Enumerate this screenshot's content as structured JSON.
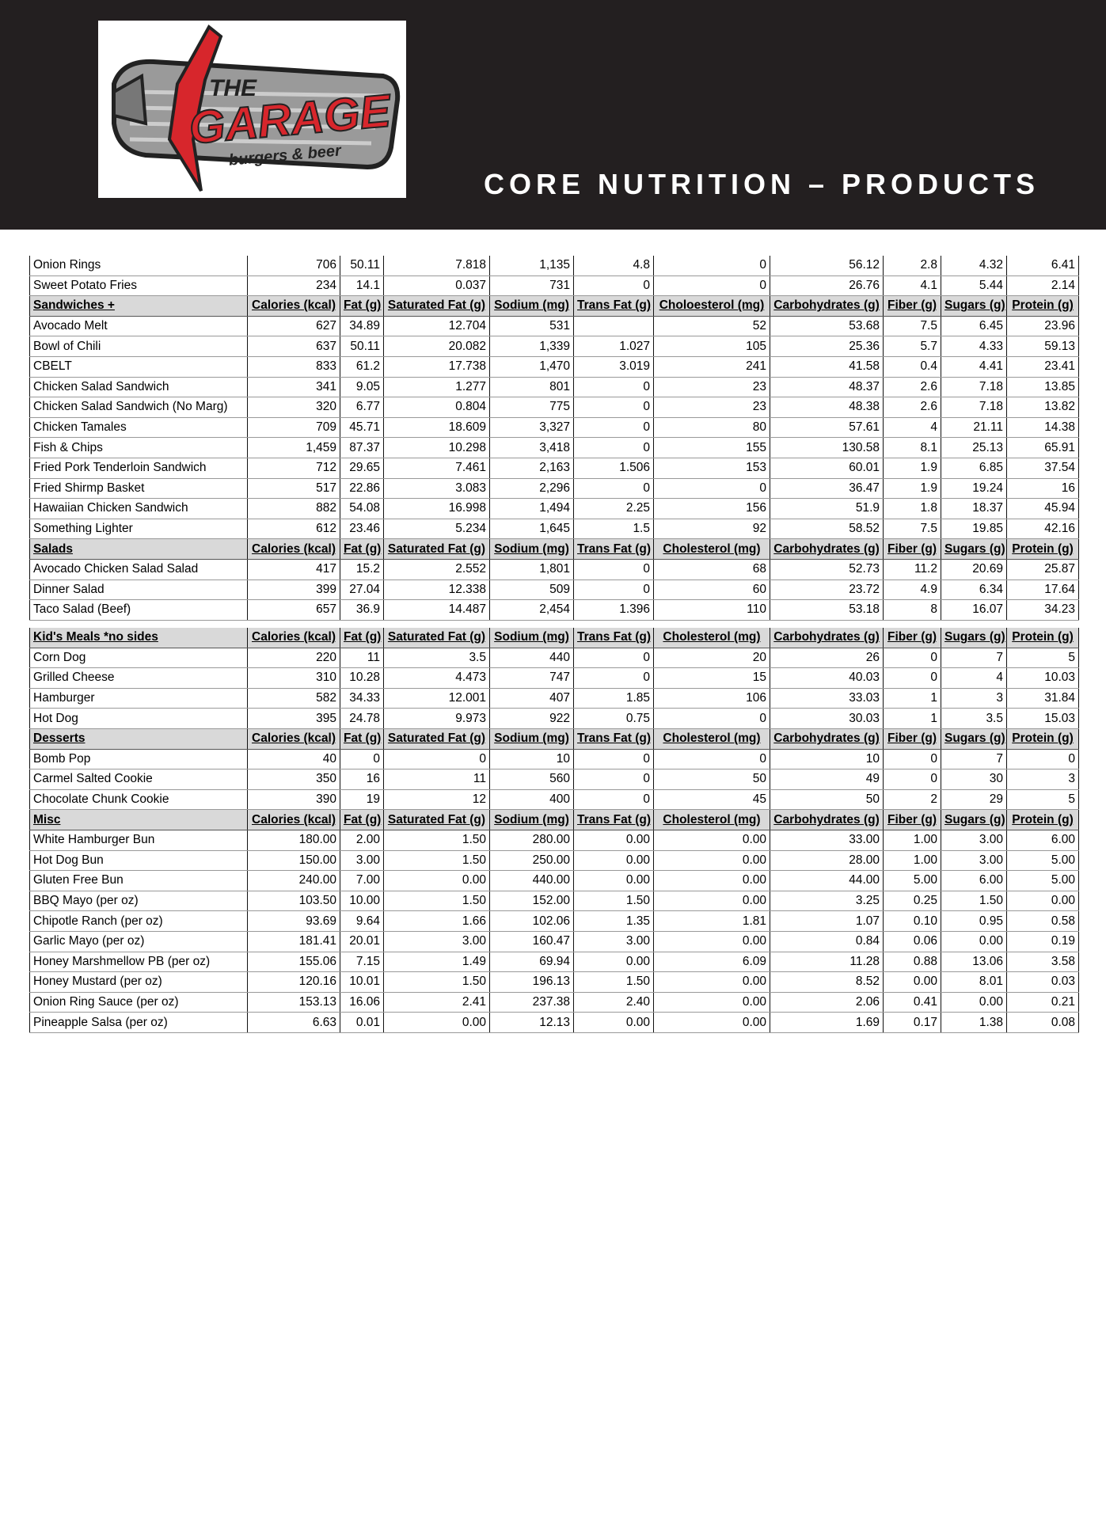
{
  "header": {
    "logo": {
      "line1": "THE",
      "line2": "GARAGE",
      "tagline": "burgers & beer"
    },
    "title": "CORE NUTRITION – PRODUCTS"
  },
  "tables": [
    {
      "rows": [
        {
          "cells": [
            "Onion Rings",
            "706",
            "50.11",
            "7.818",
            "1,135",
            "4.8",
            "0",
            "56.12",
            "2.8",
            "4.32",
            "6.41"
          ]
        },
        {
          "cells": [
            "Sweet Potato Fries",
            "234",
            "14.1",
            "0.037",
            "731",
            "0",
            "0",
            "26.76",
            "4.1",
            "5.44",
            "2.14"
          ]
        },
        {
          "heading": [
            "Sandwiches +",
            "Calories (kcal)",
            "Fat (g)",
            "Saturated Fat (g)",
            "Sodium (mg)",
            "Trans Fat (g)",
            "Choloesterol (mg)",
            "Carbohydrates (g)",
            "Fiber (g)",
            "Sugars (g)",
            "Protein (g)"
          ]
        },
        {
          "cells": [
            "Avocado Melt",
            "627",
            "34.89",
            "12.704",
            "531",
            null,
            "52",
            "53.68",
            "7.5",
            "6.45",
            "23.96"
          ]
        },
        {
          "cells": [
            "Bowl of Chili",
            "637",
            "50.11",
            "20.082",
            "1,339",
            "1.027",
            "105",
            "25.36",
            "5.7",
            "4.33",
            "59.13"
          ]
        },
        {
          "cells": [
            "CBELT",
            "833",
            "61.2",
            "17.738",
            "1,470",
            "3.019",
            "241",
            "41.58",
            "0.4",
            "4.41",
            "23.41"
          ]
        },
        {
          "cells": [
            "Chicken Salad Sandwich",
            "341",
            "9.05",
            "1.277",
            "801",
            "0",
            "23",
            "48.37",
            "2.6",
            "7.18",
            "13.85"
          ]
        },
        {
          "cells": [
            "Chicken Salad Sandwich (No Marg)",
            "320",
            "6.77",
            "0.804",
            "775",
            "0",
            "23",
            "48.38",
            "2.6",
            "7.18",
            "13.82"
          ]
        },
        {
          "cells": [
            "Chicken Tamales",
            "709",
            "45.71",
            "18.609",
            "3,327",
            "0",
            "80",
            "57.61",
            "4",
            "21.11",
            "14.38"
          ]
        },
        {
          "cells": [
            "Fish & Chips",
            "1,459",
            "87.37",
            "10.298",
            "3,418",
            "0",
            "155",
            "130.58",
            "8.1",
            "25.13",
            "65.91"
          ]
        },
        {
          "cells": [
            "Fried Pork Tenderloin Sandwich",
            "712",
            "29.65",
            "7.461",
            "2,163",
            "1.506",
            "153",
            "60.01",
            "1.9",
            "6.85",
            "37.54"
          ]
        },
        {
          "cells": [
            "Fried Shirmp Basket",
            "517",
            "22.86",
            "3.083",
            "2,296",
            "0",
            "0",
            "36.47",
            "1.9",
            "19.24",
            "16"
          ]
        },
        {
          "cells": [
            "Hawaiian Chicken Sandwich",
            "882",
            "54.08",
            "16.998",
            "1,494",
            "2.25",
            "156",
            "51.9",
            "1.8",
            "18.37",
            "45.94"
          ]
        },
        {
          "cells": [
            "Something Lighter",
            "612",
            "23.46",
            "5.234",
            "1,645",
            "1.5",
            "92",
            "58.52",
            "7.5",
            "19.85",
            "42.16"
          ]
        },
        {
          "heading": [
            "Salads",
            "Calories (kcal)",
            "Fat (g)",
            "Saturated Fat (g)",
            "Sodium (mg)",
            "Trans Fat (g)",
            "Cholesterol (mg)",
            "Carbohydrates (g)",
            "Fiber (g)",
            "Sugars (g)",
            "Protein (g)"
          ]
        },
        {
          "cells": [
            "Avocado Chicken Salad Salad",
            "417",
            "15.2",
            "2.552",
            "1,801",
            "0",
            "68",
            "52.73",
            "11.2",
            "20.69",
            "25.87"
          ]
        },
        {
          "cells": [
            "Dinner Salad",
            "399",
            "27.04",
            "12.338",
            "509",
            "0",
            "60",
            "23.72",
            "4.9",
            "6.34",
            "17.64"
          ]
        },
        {
          "cells": [
            "Taco Salad (Beef)",
            "657",
            "36.9",
            "14.487",
            "2,454",
            "1.396",
            "110",
            "53.18",
            "8",
            "16.07",
            "34.23"
          ]
        }
      ]
    },
    {
      "rows": [
        {
          "heading": [
            "Kid's Meals *no sides",
            "Calories (kcal)",
            "Fat (g)",
            "Saturated Fat (g)",
            "Sodium (mg)",
            "Trans Fat (g)",
            "Cholesterol (mg)",
            "Carbohydrates (g)",
            "Fiber (g)",
            "Sugars (g)",
            "Protein (g)"
          ]
        },
        {
          "cells": [
            "Corn Dog",
            "220",
            "11",
            "3.5",
            "440",
            "0",
            "20",
            "26",
            "0",
            "7",
            "5"
          ]
        },
        {
          "cells": [
            "Grilled Cheese",
            "310",
            "10.28",
            "4.473",
            "747",
            "0",
            "15",
            "40.03",
            "0",
            "4",
            "10.03"
          ]
        },
        {
          "cells": [
            "Hamburger",
            "582",
            "34.33",
            "12.001",
            "407",
            "1.85",
            "106",
            "33.03",
            "1",
            "3",
            "31.84"
          ]
        },
        {
          "cells": [
            "Hot Dog",
            "395",
            "24.78",
            "9.973",
            "922",
            "0.75",
            "0",
            "30.03",
            "1",
            "3.5",
            "15.03"
          ]
        },
        {
          "heading": [
            "Desserts",
            "Calories (kcal)",
            "Fat (g)",
            "Saturated Fat (g)",
            "Sodium (mg)",
            "Trans Fat (g)",
            "Cholesterol (mg)",
            "Carbohydrates (g)",
            "Fiber (g)",
            "Sugars (g)",
            "Protein (g)"
          ]
        },
        {
          "cells": [
            "Bomb Pop",
            "40",
            "0",
            "0",
            "10",
            "0",
            "0",
            "10",
            "0",
            "7",
            "0"
          ]
        },
        {
          "cells": [
            "Carmel Salted Cookie",
            "350",
            "16",
            "11",
            "560",
            "0",
            "50",
            "49",
            "0",
            "30",
            "3"
          ]
        },
        {
          "cells": [
            "Chocolate Chunk Cookie",
            "390",
            "19",
            "12",
            "400",
            "0",
            "45",
            "50",
            "2",
            "29",
            "5"
          ]
        },
        {
          "heading": [
            "Misc",
            "Calories (kcal)",
            "Fat (g)",
            "Saturated Fat (g)",
            "Sodium (mg)",
            "Trans Fat (g)",
            "Cholesterol (mg)",
            "Carbohydrates (g)",
            "Fiber (g)",
            "Sugars (g)",
            "Protein (g)"
          ]
        },
        {
          "cells": [
            "White Hamburger Bun",
            "180.00",
            "2.00",
            "1.50",
            "280.00",
            "0.00",
            "0.00",
            "33.00",
            "1.00",
            "3.00",
            "6.00"
          ]
        },
        {
          "cells": [
            "Hot Dog Bun",
            "150.00",
            "3.00",
            "1.50",
            "250.00",
            "0.00",
            "0.00",
            "28.00",
            "1.00",
            "3.00",
            "5.00"
          ]
        },
        {
          "cells": [
            "Gluten Free Bun",
            "240.00",
            "7.00",
            "0.00",
            "440.00",
            "0.00",
            "0.00",
            "44.00",
            "5.00",
            "6.00",
            "5.00"
          ]
        },
        {
          "cells": [
            "BBQ Mayo (per oz)",
            "103.50",
            "10.00",
            "1.50",
            "152.00",
            "1.50",
            "0.00",
            "3.25",
            "0.25",
            "1.50",
            "0.00"
          ]
        },
        {
          "cells": [
            "Chipotle Ranch (per oz)",
            "93.69",
            "9.64",
            "1.66",
            "102.06",
            "1.35",
            "1.81",
            "1.07",
            "0.10",
            "0.95",
            "0.58"
          ]
        },
        {
          "cells": [
            "Garlic Mayo (per oz)",
            "181.41",
            "20.01",
            "3.00",
            "160.47",
            "3.00",
            "0.00",
            "0.84",
            "0.06",
            "0.00",
            "0.19"
          ]
        },
        {
          "cells": [
            "Honey Marshmellow PB (per oz)",
            "155.06",
            "7.15",
            "1.49",
            "69.94",
            "0.00",
            "6.09",
            "11.28",
            "0.88",
            "13.06",
            "3.58"
          ]
        },
        {
          "cells": [
            "Honey Mustard (per oz)",
            "120.16",
            "10.01",
            "1.50",
            "196.13",
            "1.50",
            "0.00",
            "8.52",
            "0.00",
            "8.01",
            "0.03"
          ]
        },
        {
          "cells": [
            "Onion Ring Sauce (per oz)",
            "153.13",
            "16.06",
            "2.41",
            "237.38",
            "2.40",
            "0.00",
            "2.06",
            "0.41",
            "0.00",
            "0.21"
          ]
        },
        {
          "cells": [
            "Pineapple Salsa (per oz)",
            "6.63",
            "0.01",
            "0.00",
            "12.13",
            "0.00",
            "0.00",
            "1.69",
            "0.17",
            "1.38",
            "0.08"
          ]
        }
      ]
    }
  ]
}
